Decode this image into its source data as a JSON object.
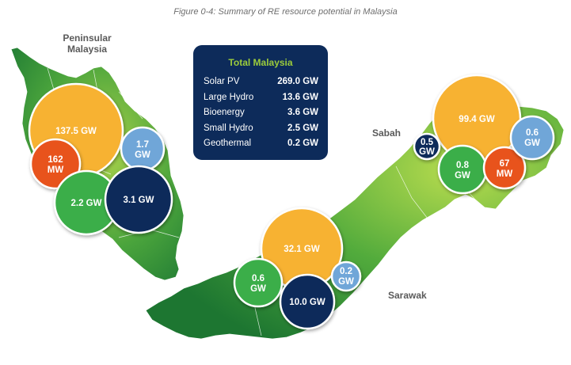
{
  "figure_title": "Figure 0-4: Summary of RE resource potential in Malaysia",
  "regions": {
    "peninsular": {
      "label_line1": "Peninsular",
      "label_line2": "Malaysia"
    },
    "sabah": {
      "label": "Sabah"
    },
    "sarawak": {
      "label": "Sarawak"
    }
  },
  "summary": {
    "title": "Total Malaysia",
    "rows": [
      {
        "name": "Solar PV",
        "value": "269.0 GW"
      },
      {
        "name": "Large Hydro",
        "value": "13.6 GW"
      },
      {
        "name": "Bioenergy",
        "value": "3.6 GW"
      },
      {
        "name": "Small Hydro",
        "value": "2.5 GW"
      },
      {
        "name": "Geothermal",
        "value": "0.2 GW"
      }
    ]
  },
  "legend_colors": {
    "solar_pv": "#f7b231",
    "large_hydro": "#0d2b5a",
    "bioenergy": "#3aae4a",
    "small_hydro": "#6fa6d8",
    "geothermal": "#e8531f",
    "land": "#4aa43c"
  },
  "bubbles": {
    "peninsular": {
      "solar_pv": {
        "line1": "137.5 GW",
        "line2": ""
      },
      "small_hydro": {
        "line1": "1.7",
        "line2": "GW"
      },
      "geothermal": {
        "line1": "162",
        "line2": "MW"
      },
      "bioenergy": {
        "line1": "2.2 GW",
        "line2": ""
      },
      "large_hydro": {
        "line1": "3.1 GW",
        "line2": ""
      }
    },
    "sarawak": {
      "solar_pv": {
        "line1": "32.1 GW",
        "line2": ""
      },
      "bioenergy": {
        "line1": "0.6",
        "line2": "GW"
      },
      "small_hydro": {
        "line1": "0.2",
        "line2": "GW"
      },
      "large_hydro": {
        "line1": "10.0 GW",
        "line2": ""
      }
    },
    "sabah": {
      "solar_pv": {
        "line1": "99.4 GW",
        "line2": ""
      },
      "large_hydro": {
        "line1": "0.5",
        "line2": "GW"
      },
      "small_hydro": {
        "line1": "0.6",
        "line2": "GW"
      },
      "bioenergy": {
        "line1": "0.8",
        "line2": "GW"
      },
      "geothermal": {
        "line1": "67",
        "line2": "MW"
      }
    }
  }
}
